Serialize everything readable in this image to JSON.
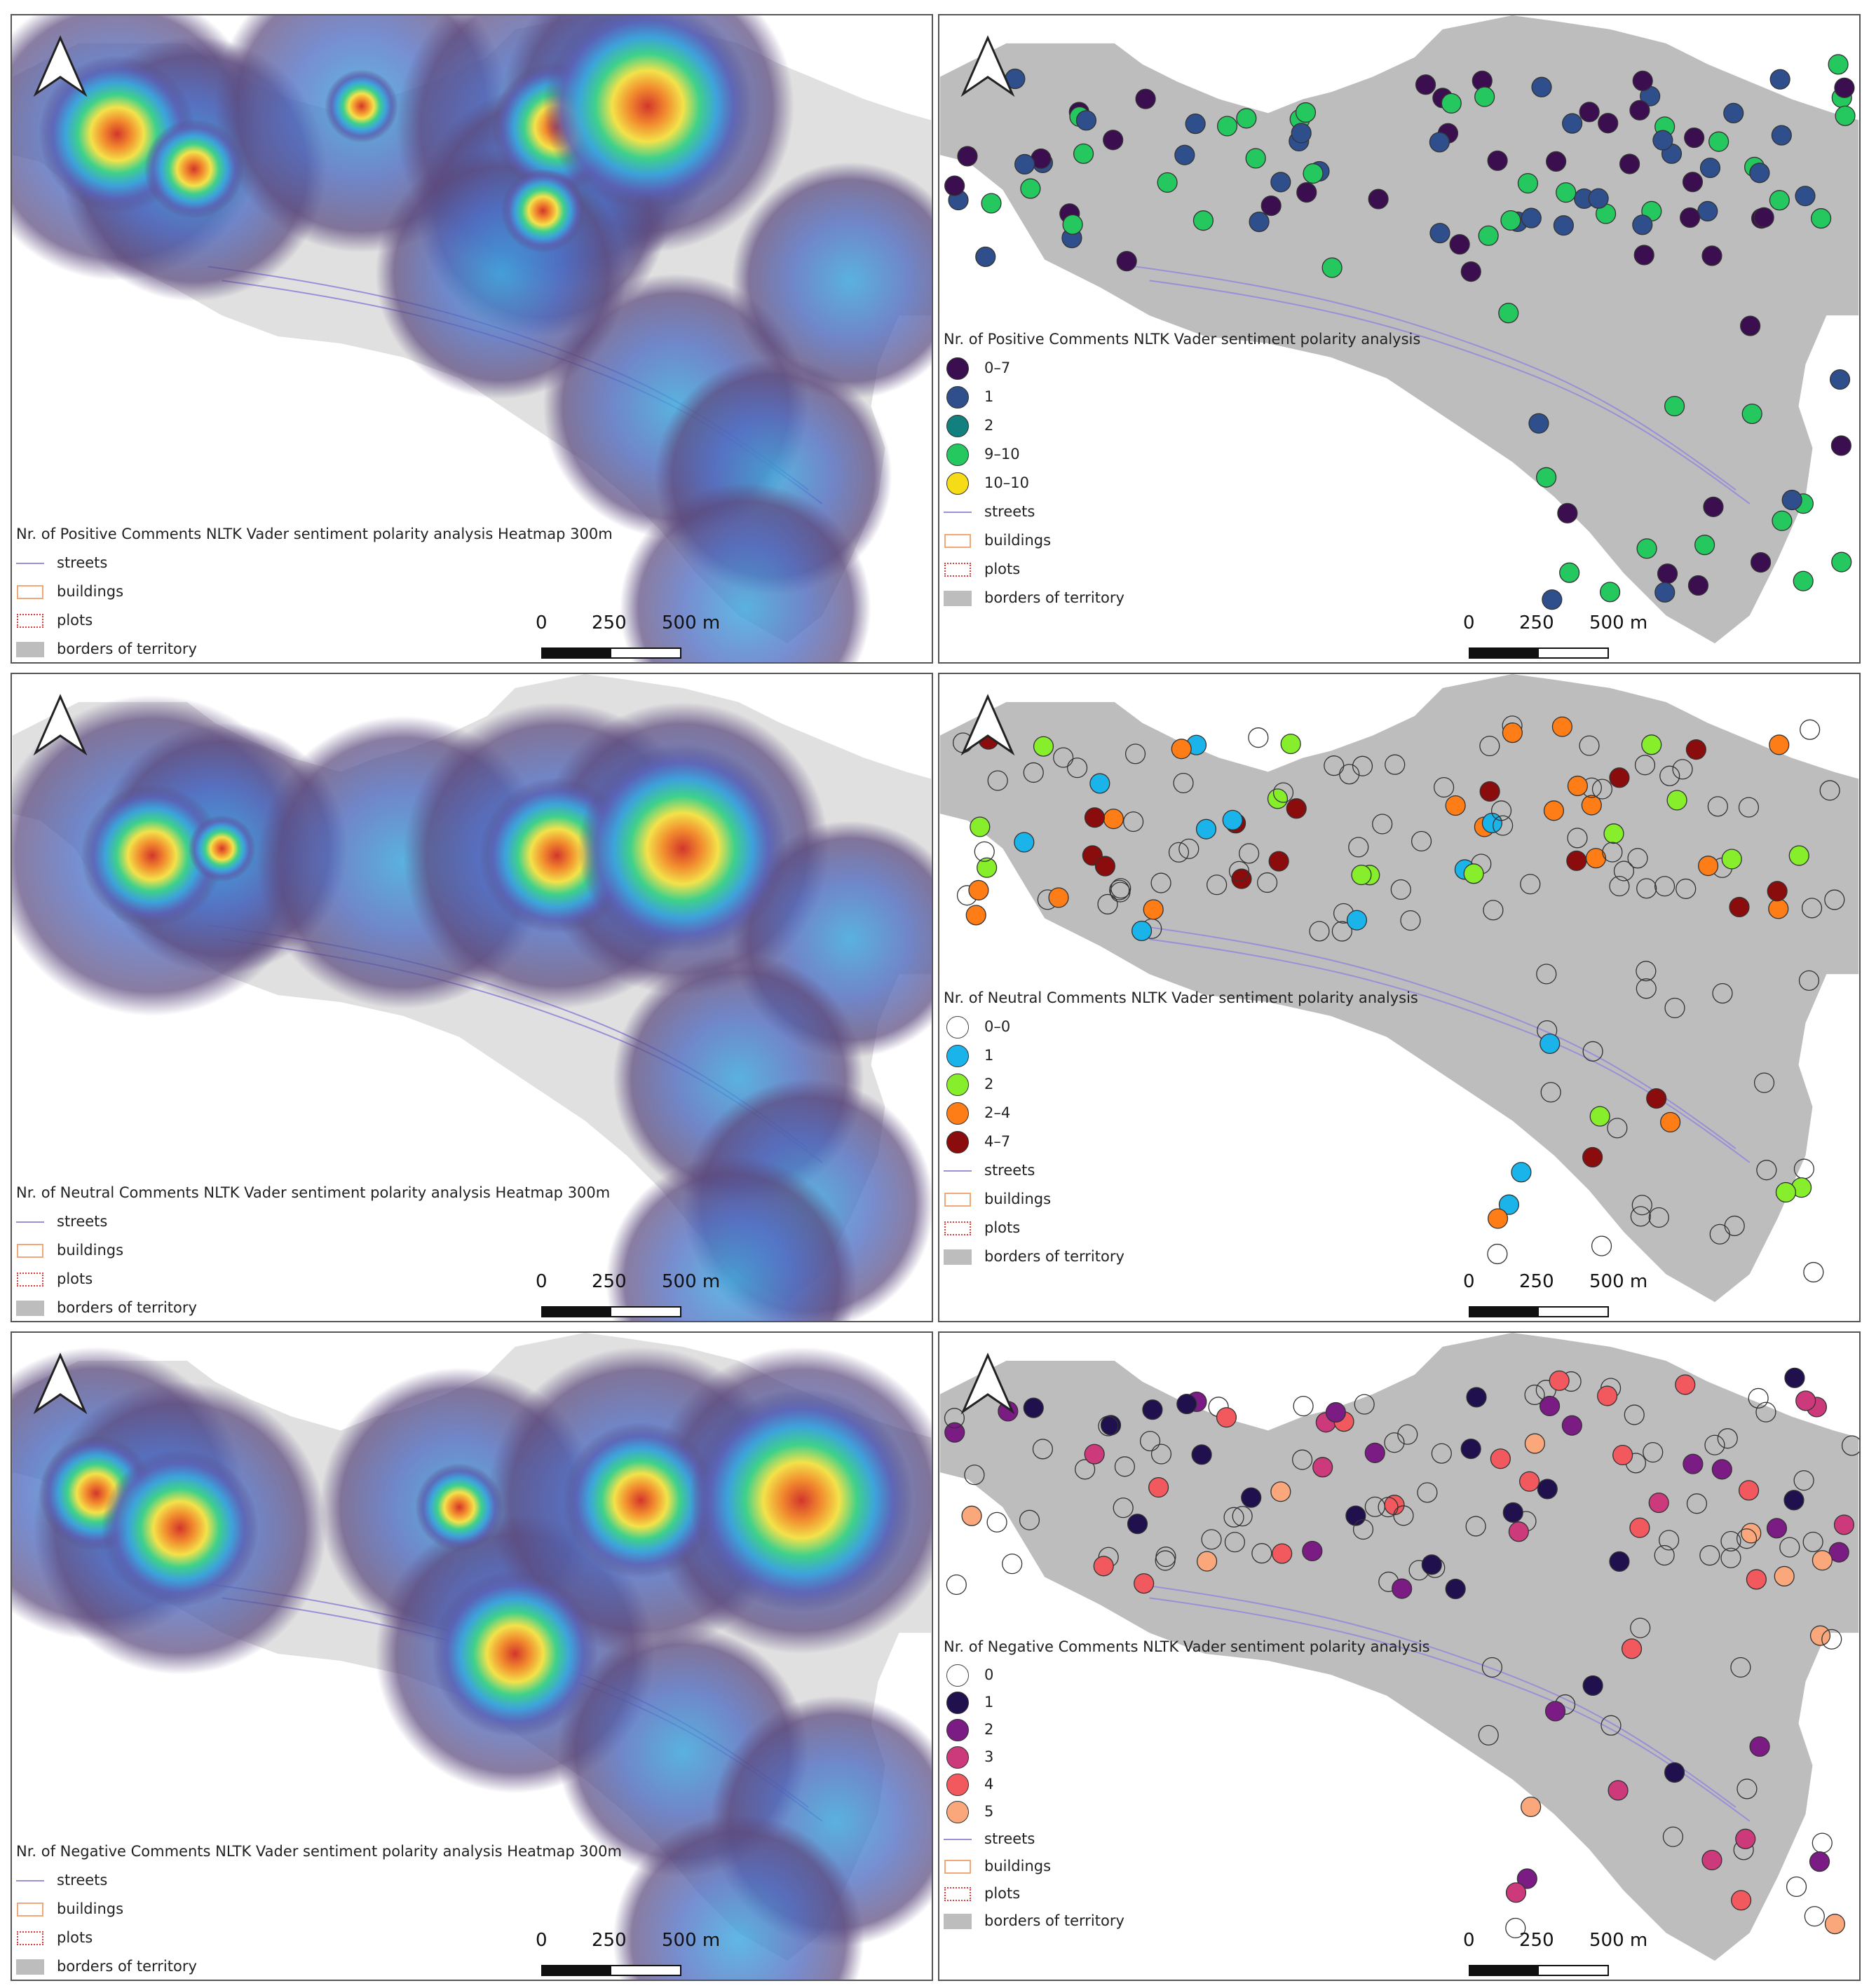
{
  "common": {
    "scale_labels": [
      "0",
      "250",
      "500 m"
    ],
    "base_legend": [
      "streets",
      "buildings",
      "plots",
      "borders of territory"
    ]
  },
  "heatmaps": [
    {
      "title": "Nr. of  Positive Comments NLTK Vader sentiment polarity analysis Heatmap 300m"
    },
    {
      "title": "Nr. of  Neutral Comments NLTK Vader sentiment polarity analysis Heatmap 300m"
    },
    {
      "title": "Nr. of  Negative Comments NLTK Vader sentiment polarity analysis Heatmap 300m"
    }
  ],
  "pointmaps": [
    {
      "title": "Nr. of  Positive Comments NLTK Vader sentiment polarity analysis",
      "classes": [
        {
          "label": "0–7",
          "color": "#3b0f4f"
        },
        {
          "label": "1",
          "color": "#2e4f8c"
        },
        {
          "label": "2",
          "color": "#12807f"
        },
        {
          "label": "9–10",
          "color": "#24c85f"
        },
        {
          "label": "10–10",
          "color": "#f5dc17"
        }
      ]
    },
    {
      "title": "Nr. of  Neutral Comments NLTK Vader sentiment polarity analysis",
      "classes": [
        {
          "label": "0–0",
          "color": "#ffffff"
        },
        {
          "label": "1",
          "color": "#1ab3ea"
        },
        {
          "label": "2",
          "color": "#86ee2a"
        },
        {
          "label": "2–4",
          "color": "#ff7d16"
        },
        {
          "label": "4–7",
          "color": "#8a0c0c"
        }
      ]
    },
    {
      "title": "Nr. of  Negative Comments NLTK Vader sentiment polarity analysis",
      "classes": [
        {
          "label": "0",
          "color": "#ffffff"
        },
        {
          "label": "1",
          "color": "#21104e"
        },
        {
          "label": "2",
          "color": "#7b1b84"
        },
        {
          "label": "3",
          "color": "#cd3a7b"
        },
        {
          "label": "4",
          "color": "#f2595e"
        },
        {
          "label": "5",
          "color": "#f9a77b"
        }
      ]
    }
  ]
}
